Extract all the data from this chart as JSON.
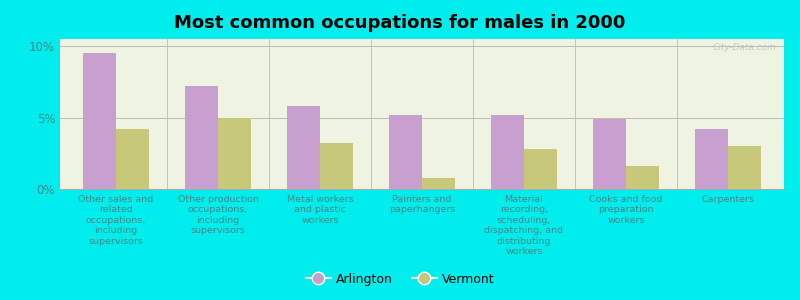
{
  "title": "Most common occupations for males in 2000",
  "categories": [
    "Other sales and\nrelated\noccupations,\nincluding\nsupervisors",
    "Other production\noccupations,\nincluding\nsupervisors",
    "Metal workers\nand plastic\nworkers",
    "Painters and\npaperhangers",
    "Material\nrecording,\nscheduling,\ndispatching, and\ndistributing\nworkers",
    "Cooks and food\npreparation\nworkers",
    "Carpenters"
  ],
  "arlington_values": [
    9.5,
    7.2,
    5.8,
    5.2,
    5.2,
    4.9,
    4.2
  ],
  "vermont_values": [
    4.2,
    5.0,
    3.2,
    0.8,
    2.8,
    1.6,
    3.0
  ],
  "arlington_color": "#c8a0d0",
  "vermont_color": "#c8c87a",
  "background_color": "#00eded",
  "chart_bg": "#f0f4e8",
  "ylim": [
    0,
    10.5
  ],
  "yticks": [
    0,
    5,
    10
  ],
  "ytick_labels": [
    "0%",
    "5%",
    "10%"
  ],
  "bar_width": 0.32,
  "title_fontsize": 13,
  "watermark": "City-Data.com",
  "legend_labels": [
    "Arlington",
    "Vermont"
  ],
  "tick_color": "#448888",
  "label_fontsize": 6.8
}
